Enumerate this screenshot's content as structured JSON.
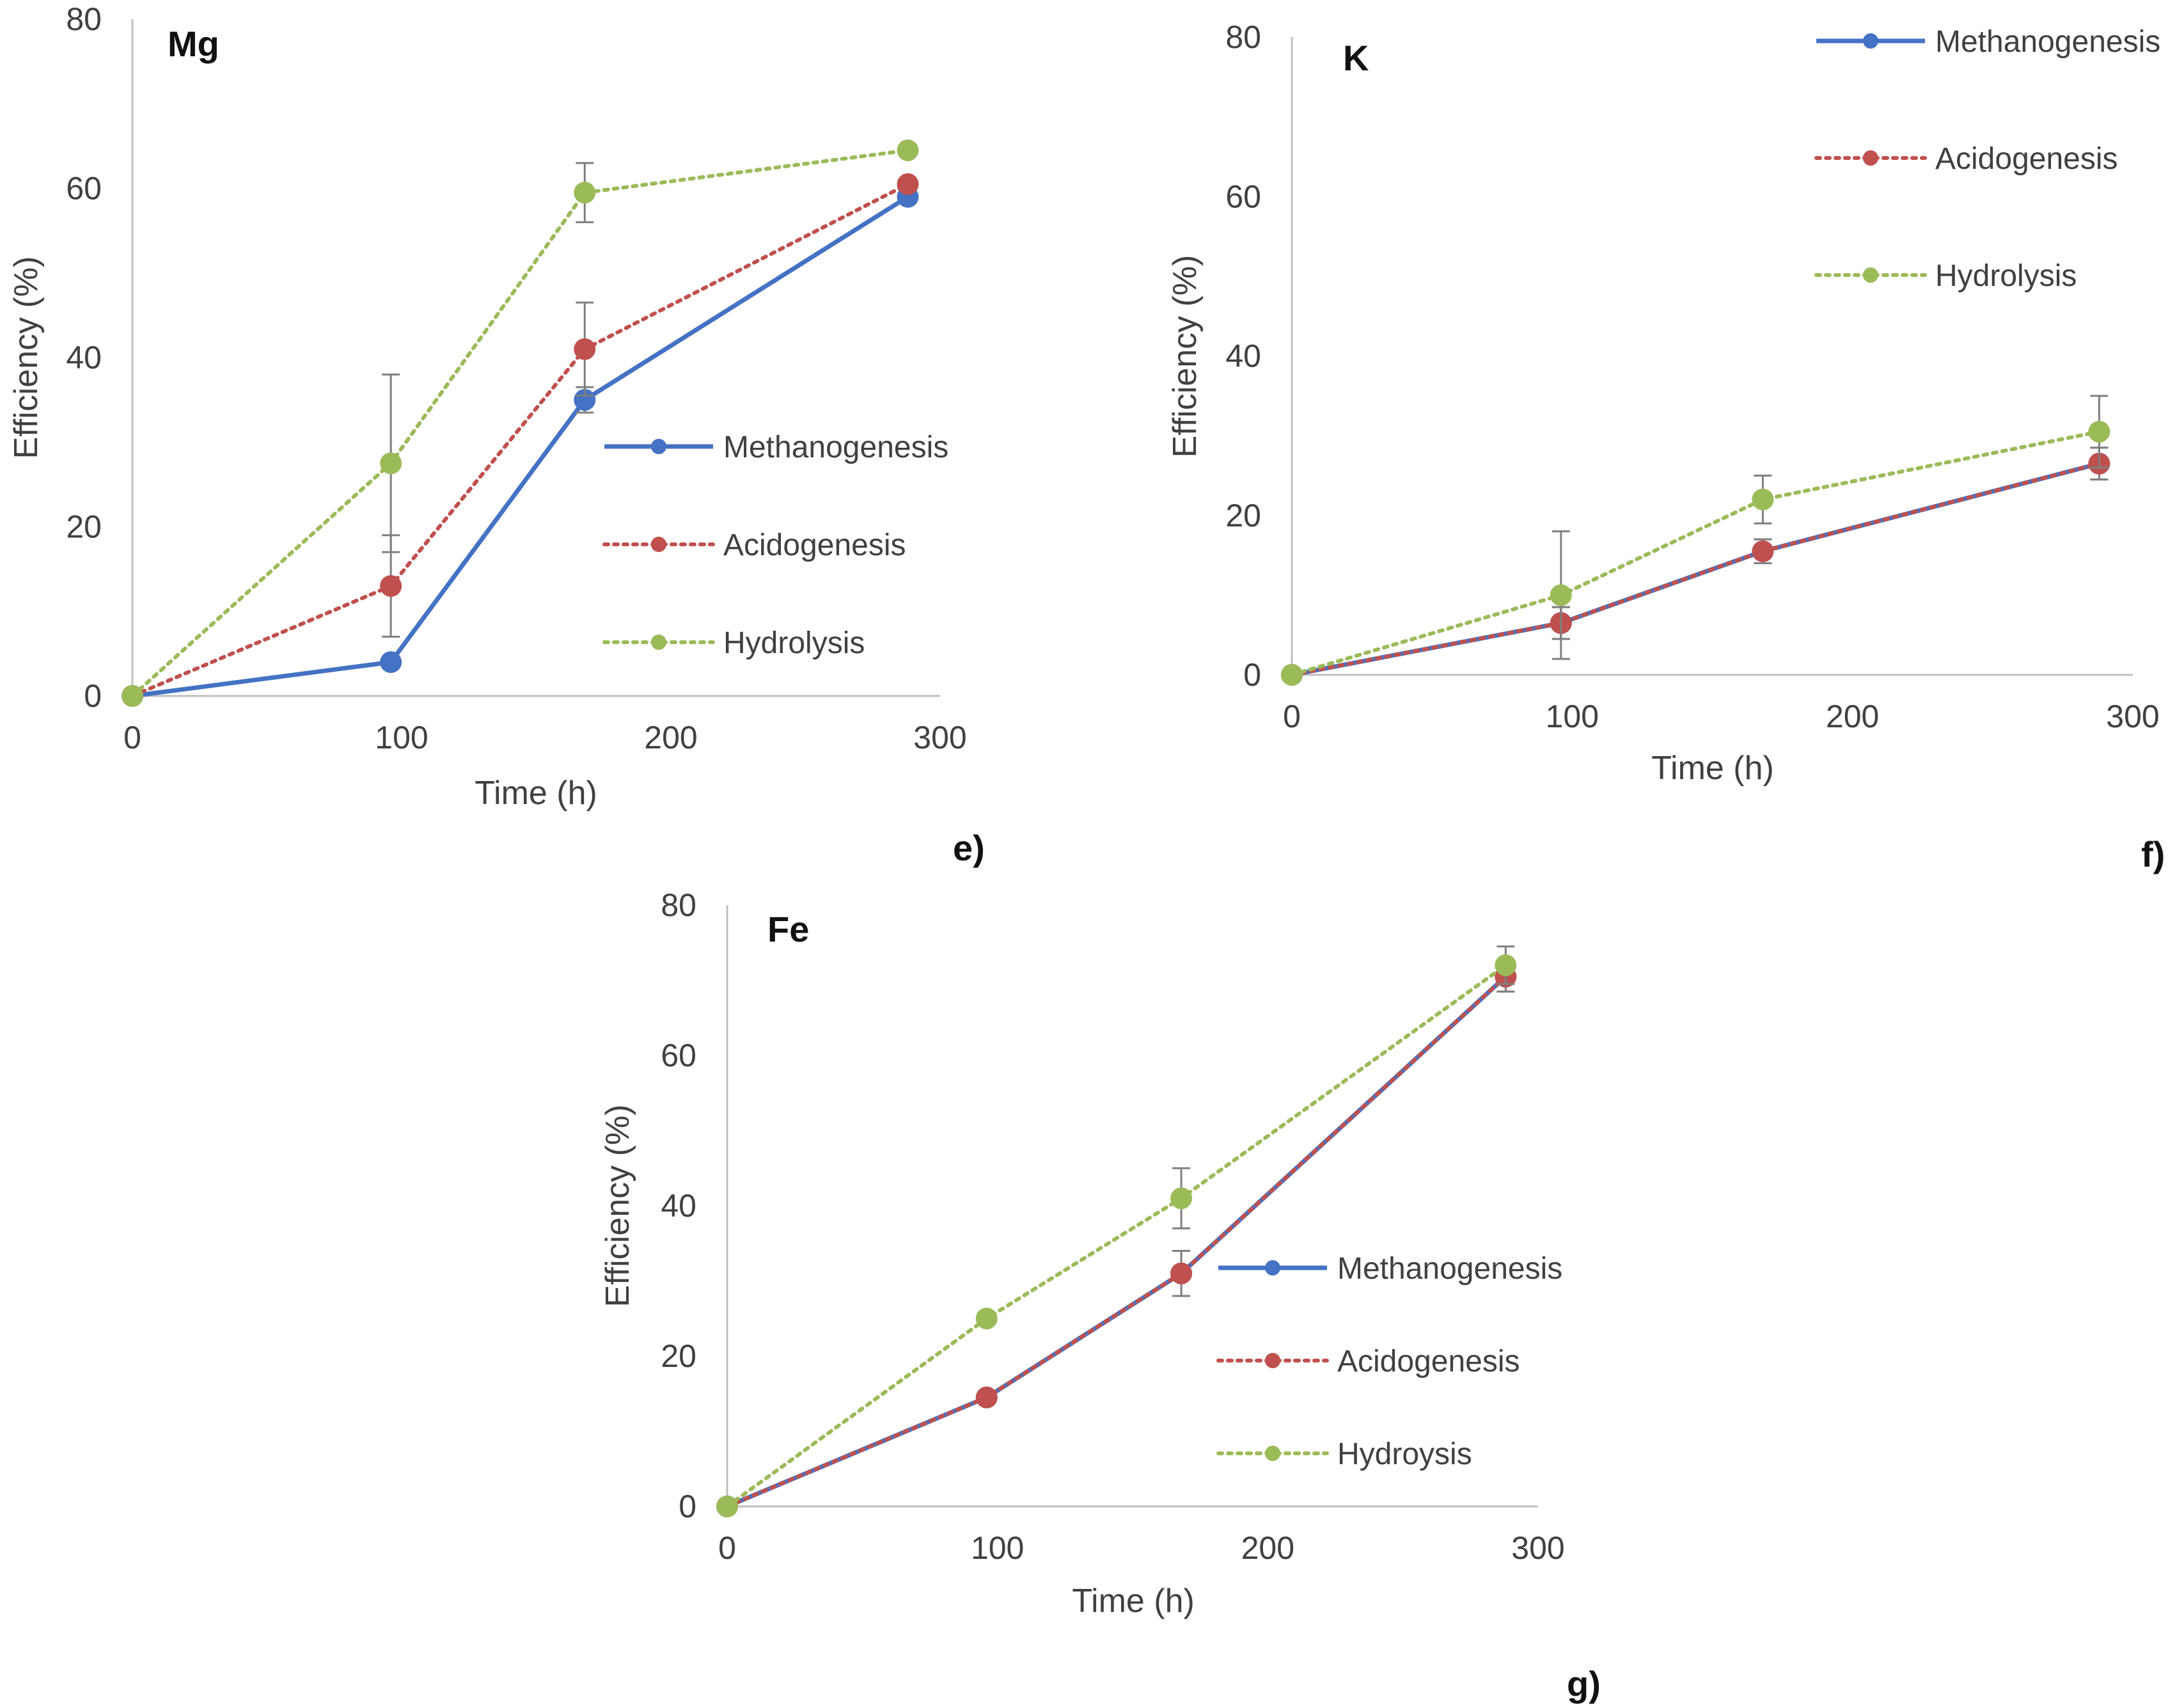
{
  "colors": {
    "methanogenesis": "#4472C4",
    "acidogenesis": "#C0504D",
    "hydrolysis": "#9BBB59",
    "axis": "#BFBFBF",
    "errorbar": "#7F7F7F"
  },
  "chart_data": [
    {
      "type": "line",
      "title": "Mg",
      "panel_label": "e)",
      "xlabel": "Time (h)",
      "ylabel": "Efficiency (%)",
      "xlim": [
        0,
        300
      ],
      "ylim": [
        0,
        80
      ],
      "xticks": [
        0,
        100,
        200,
        300
      ],
      "yticks": [
        0,
        20,
        40,
        60,
        80
      ],
      "x": [
        0,
        96,
        168,
        288
      ],
      "legend_position": "center-right",
      "series": [
        {
          "name": "Methanogenesis",
          "key": "methanogenesis",
          "style": "solid",
          "values": [
            0,
            4,
            35,
            59
          ],
          "errors": [
            0,
            0,
            1.5,
            0
          ]
        },
        {
          "name": "Acidogenesis",
          "key": "acidogenesis",
          "style": "dotted",
          "values": [
            0,
            13,
            41,
            60.5
          ],
          "errors": [
            0,
            6,
            5.5,
            0
          ]
        },
        {
          "name": "Hydrolysis",
          "key": "hydrolysis",
          "style": "dotted",
          "values": [
            0,
            27.5,
            59.5,
            64.5
          ],
          "errors": [
            0,
            10.5,
            3.5,
            0
          ]
        }
      ]
    },
    {
      "type": "line",
      "title": "K",
      "panel_label": "f)",
      "xlabel": "Time (h)",
      "ylabel": "Efficiency (%)",
      "xlim": [
        0,
        300
      ],
      "ylim": [
        0,
        80
      ],
      "xticks": [
        0,
        100,
        200,
        300
      ],
      "yticks": [
        0,
        20,
        40,
        60,
        80
      ],
      "x": [
        0,
        96,
        168,
        288
      ],
      "legend_position": "top-right",
      "series": [
        {
          "name": "Methanogenesis",
          "key": "methanogenesis",
          "style": "solid",
          "values": [
            0,
            6.5,
            15.5,
            26.5
          ],
          "errors": [
            0,
            2,
            1.5,
            2
          ]
        },
        {
          "name": "Acidogenesis",
          "key": "acidogenesis",
          "style": "dotted",
          "values": [
            0,
            6.5,
            15.5,
            26.5
          ],
          "errors": [
            0,
            2,
            1.5,
            2
          ]
        },
        {
          "name": "Hydrolysis",
          "key": "hydrolysis",
          "style": "dotted",
          "values": [
            0,
            10,
            22,
            30.5
          ],
          "errors": [
            0,
            8,
            3,
            4.5
          ]
        }
      ]
    },
    {
      "type": "line",
      "title": "Fe",
      "panel_label": "g)",
      "xlabel": "Time (h)",
      "ylabel": "Efficiency (%)",
      "xlim": [
        0,
        300
      ],
      "ylim": [
        0,
        80
      ],
      "xticks": [
        0,
        100,
        200,
        300
      ],
      "yticks": [
        0,
        20,
        40,
        60,
        80
      ],
      "x": [
        0,
        96,
        168,
        288
      ],
      "legend_position": "center-right",
      "series": [
        {
          "name": "Methanogenesis",
          "key": "methanogenesis",
          "style": "solid",
          "values": [
            0,
            14.5,
            31,
            70.5
          ],
          "errors": [
            0,
            0,
            3,
            2
          ]
        },
        {
          "name": "Acidogenesis",
          "key": "acidogenesis",
          "style": "dotted",
          "values": [
            0,
            14.5,
            31,
            70.5
          ],
          "errors": [
            0,
            0,
            3,
            2
          ]
        },
        {
          "name": "Hydroysis",
          "key": "hydrolysis",
          "style": "dotted",
          "values": [
            0,
            25,
            41,
            72
          ],
          "errors": [
            0,
            0,
            4,
            2.5
          ]
        }
      ]
    }
  ]
}
